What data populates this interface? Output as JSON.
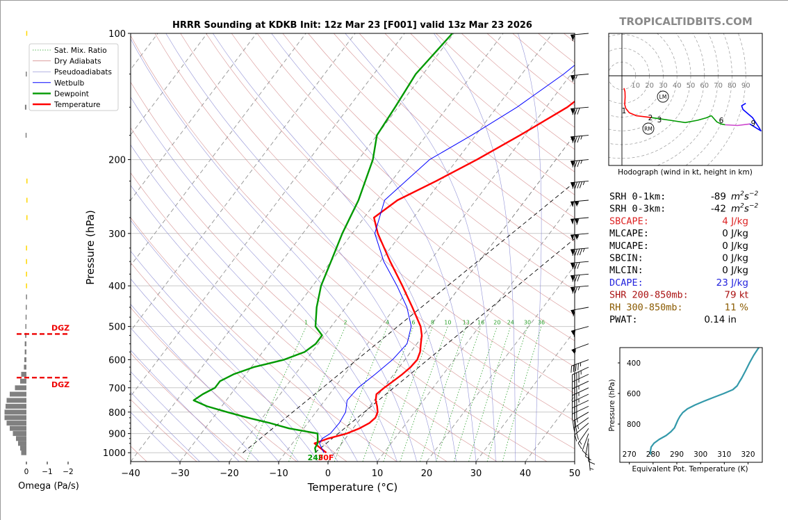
{
  "title": "HRRR Sounding at KDKB Init: 12z Mar 23 [F001] valid 13z Mar 23 2026",
  "brand": "TROPICALTIDBITS.COM",
  "chart_data": [
    {
      "type": "line",
      "name": "skewt",
      "xlabel": "Temperature (°C)",
      "ylabel": "Pressure (hPa)",
      "xlim": [
        -40,
        50
      ],
      "ylim": [
        1050,
        100
      ],
      "log_y": true,
      "x_ticks": [
        -40,
        -30,
        -20,
        -10,
        0,
        10,
        20,
        30,
        40,
        50
      ],
      "y_ticks": [
        100,
        200,
        300,
        400,
        500,
        600,
        700,
        800,
        900,
        1000
      ],
      "legend": [
        "Sat. Mix. Ratio",
        "Dry Adiabats",
        "Pseudoadiabats",
        "Wetbulb",
        "Dewpoint",
        "Temperature"
      ],
      "series": [
        {
          "name": "Temperature",
          "color": "#ff0000",
          "p": [
            1000,
            975,
            950,
            925,
            900,
            875,
            850,
            825,
            800,
            775,
            750,
            725,
            700,
            675,
            650,
            625,
            600,
            575,
            550,
            525,
            500,
            450,
            400,
            350,
            300,
            275,
            250,
            225,
            200,
            175,
            150,
            125,
            100
          ],
          "t": [
            -1.7,
            -3.6,
            -5.5,
            -3.5,
            -0.5,
            1.3,
            2.5,
            2.9,
            2.5,
            1.5,
            0.3,
            -0.5,
            0.1,
            0.9,
            1.7,
            2.3,
            2.5,
            1.9,
            0.8,
            -0.3,
            -1.9,
            -6.5,
            -11.8,
            -18,
            -24.8,
            -28,
            -25.9,
            -21,
            -16,
            -11,
            -5.7,
            -2.1,
            -2
          ]
        },
        {
          "name": "Dewpoint",
          "color": "#009900",
          "p": [
            1000,
            975,
            950,
            925,
            900,
            875,
            850,
            825,
            800,
            775,
            750,
            725,
            700,
            675,
            650,
            625,
            600,
            575,
            550,
            525,
            500,
            450,
            400,
            350,
            300,
            250,
            200,
            175,
            150,
            125,
            100
          ],
          "t": [
            -3.8,
            -4.7,
            -4.9,
            -5.6,
            -6.4,
            -13,
            -17.6,
            -23,
            -28,
            -33,
            -36.6,
            -35.7,
            -34.2,
            -34.2,
            -32.5,
            -29.5,
            -24.5,
            -21.5,
            -20.5,
            -20.5,
            -23.2,
            -25.9,
            -28.3,
            -30,
            -32,
            -33.8,
            -37.1,
            -40,
            -40.6,
            -41.5,
            -40.3
          ]
        },
        {
          "name": "Wetbulb",
          "color": "#0000ff",
          "p": [
            1000,
            950,
            925,
            900,
            850,
            800,
            750,
            700,
            650,
            600,
            550,
            500,
            450,
            400,
            350,
            300,
            250,
            200,
            175,
            150,
            125,
            100
          ],
          "t": [
            -2.2,
            -4.5,
            -4.7,
            -3.8,
            -3.6,
            -4,
            -5.5,
            -5.2,
            -3.8,
            -2.5,
            -2,
            -3.8,
            -7.6,
            -12.9,
            -19.3,
            -25.4,
            -28.5,
            -25.6,
            -20.8,
            -15.9,
            -11.5,
            -7.6
          ]
        }
      ],
      "surface_labels": [
        {
          "text": "24F",
          "color": "#009900"
        },
        {
          "text": "30F",
          "color": "#ff0000"
        }
      ],
      "mixing_ratio_labels": [
        "1",
        "2",
        "4",
        "6",
        "8",
        "10",
        "13",
        "16",
        "20",
        "24",
        "30",
        "36"
      ]
    },
    {
      "type": "line",
      "name": "hodograph",
      "xlabel": "Hodograph (wind in kt, height in km)",
      "ring_labels": [
        "10",
        "20",
        "30",
        "40",
        "50",
        "60",
        "70",
        "80",
        "90"
      ],
      "height_labels": [
        "1",
        "2",
        "3",
        "6",
        "9"
      ],
      "storm_motion": [
        "LM",
        "RM"
      ],
      "series": [
        {
          "name": "0-1 km",
          "color": "#ff0000",
          "u": [
            1.5,
            2.2,
            2.3,
            2.0,
            2.8,
            5.3,
            10.3,
            18.6,
            21.5
          ],
          "v": [
            -9,
            -11.6,
            -15.5,
            -20.8,
            -23.7,
            -26.8,
            -29,
            -30,
            -30.4
          ]
        },
        {
          "name": "1-3 km",
          "color": "#009900",
          "u": [
            21.5,
            26,
            35,
            46,
            55,
            61.5,
            65
          ],
          "v": [
            -30.4,
            -31,
            -32.3,
            -34,
            -32.3,
            -30.5,
            -29
          ]
        },
        {
          "name": "3-6 km",
          "color": "#009900",
          "u": [
            65,
            69,
            72,
            75
          ],
          "v": [
            -29,
            -33.5,
            -35,
            -35.6
          ]
        },
        {
          "name": "6-9 km",
          "color": "#cc44cc",
          "u": [
            75,
            84,
            93
          ],
          "v": [
            -35.6,
            -36.1,
            -35
          ]
        },
        {
          "name": "9-12 km",
          "color": "#0000ff",
          "u": [
            93,
            98,
            101,
            100,
            95,
            88,
            87,
            90
          ],
          "v": [
            -35,
            -38.2,
            -40,
            -38.2,
            -30.5,
            -24.5,
            -21.8,
            -20
          ]
        }
      ]
    },
    {
      "type": "line",
      "name": "theta-e",
      "xlabel": "Equivalent Pot. Temperature (K)",
      "ylabel": "Pressure (hPa)",
      "xlim": [
        266,
        326
      ],
      "ylim": [
        1050,
        300
      ],
      "x_ticks": [
        270,
        280,
        290,
        300,
        310,
        320
      ],
      "y_ticks": [
        400,
        600,
        800
      ],
      "series": [
        {
          "name": "theta-e",
          "color": "#3399aa",
          "p": [
            1000,
            975,
            950,
            925,
            900,
            875,
            850,
            825,
            800,
            775,
            750,
            725,
            700,
            675,
            650,
            625,
            600,
            575,
            550,
            525,
            500,
            450,
            400,
            350,
            300
          ],
          "v": [
            279,
            278.9,
            279.2,
            280.4,
            282.6,
            285.5,
            287.5,
            289,
            289.7,
            290.4,
            291.3,
            292.5,
            294.5,
            297.7,
            301.5,
            305.6,
            309.8,
            313.6,
            315.4,
            316.3,
            317.3,
            319,
            320.6,
            322.4,
            324.5
          ]
        }
      ]
    },
    {
      "type": "bar",
      "name": "omega",
      "xlabel": "Omega (Pa/s)",
      "x_ticks": [
        "0",
        "−1",
        "−2"
      ],
      "dgz_label": "DGZ",
      "dgz_pressures": [
        521,
        662
      ],
      "values": [
        {
          "p": 1000,
          "w": 0.25,
          "c": "#808080"
        },
        {
          "p": 975,
          "w": 0.3,
          "c": "#808080"
        },
        {
          "p": 950,
          "w": 0.4,
          "c": "#808080"
        },
        {
          "p": 925,
          "w": 0.5,
          "c": "#808080"
        },
        {
          "p": 900,
          "w": 0.65,
          "c": "#808080"
        },
        {
          "p": 875,
          "w": 0.8,
          "c": "#808080"
        },
        {
          "p": 850,
          "w": 0.95,
          "c": "#808080"
        },
        {
          "p": 825,
          "w": 1.05,
          "c": "#808080"
        },
        {
          "p": 800,
          "w": 1.05,
          "c": "#808080"
        },
        {
          "p": 775,
          "w": 1.0,
          "c": "#808080"
        },
        {
          "p": 750,
          "w": 0.95,
          "c": "#808080"
        },
        {
          "p": 725,
          "w": 0.8,
          "c": "#808080"
        },
        {
          "p": 700,
          "w": 0.55,
          "c": "#808080"
        },
        {
          "p": 675,
          "w": 0.3,
          "c": "#808080"
        },
        {
          "p": 650,
          "w": 0.25,
          "c": "#808080"
        },
        {
          "p": 625,
          "w": 0.12,
          "c": "#808080"
        },
        {
          "p": 600,
          "w": 0.1,
          "c": "#808080"
        },
        {
          "p": 575,
          "w": 0.08,
          "c": "#808080"
        },
        {
          "p": 550,
          "w": 0.08,
          "c": "#808080"
        },
        {
          "p": 525,
          "w": 0.06,
          "c": "#808080"
        },
        {
          "p": 500,
          "w": 0.05,
          "c": "#808080"
        },
        {
          "p": 475,
          "w": 0.04,
          "c": "#808080"
        },
        {
          "p": 450,
          "w": 0.03,
          "c": "#808080"
        },
        {
          "p": 425,
          "w": 0.02,
          "c": "#808080"
        },
        {
          "p": 400,
          "w": 0.02,
          "c": "#ffd700"
        },
        {
          "p": 375,
          "w": 0.02,
          "c": "#ffd700"
        },
        {
          "p": 350,
          "w": 0.02,
          "c": "#ffd700"
        },
        {
          "p": 325,
          "w": 0.02,
          "c": "#ffd700"
        },
        {
          "p": 275,
          "w": -0.02,
          "c": "#ffd700"
        },
        {
          "p": 250,
          "w": -0.05,
          "c": "#ffd700"
        },
        {
          "p": 225,
          "w": -0.05,
          "c": "#ffd700"
        },
        {
          "p": 175,
          "w": 0.04,
          "c": "#808080"
        },
        {
          "p": 150,
          "w": 0.07,
          "c": "#808080"
        },
        {
          "p": 125,
          "w": 0.03,
          "c": "#808080"
        },
        {
          "p": 100,
          "w": 0.01,
          "c": "#ffd700"
        }
      ]
    }
  ],
  "indices": [
    {
      "label": "SRH 0-1km:",
      "value": "-89",
      "unit": "m2s-2",
      "color": "#000000"
    },
    {
      "label": "SRH 0-3km:",
      "value": "-42",
      "unit": "m2s-2",
      "color": "#000000"
    },
    {
      "label": "SBCAPE:",
      "value": "4 J/kg",
      "unit": "",
      "color": "#dd2222"
    },
    {
      "label": "MLCAPE:",
      "value": "0 J/kg",
      "unit": "",
      "color": "#000000"
    },
    {
      "label": "MUCAPE:",
      "value": "0 J/kg",
      "unit": "",
      "color": "#000000"
    },
    {
      "label": "SBCIN:",
      "value": "0 J/kg",
      "unit": "",
      "color": "#000000"
    },
    {
      "label": "MLCIN:",
      "value": "0 J/kg",
      "unit": "",
      "color": "#000000"
    },
    {
      "label": "DCAPE:",
      "value": "23 J/kg",
      "unit": "",
      "color": "#2222dd"
    },
    {
      "label": "SHR 200-850mb:",
      "value": "79 kt",
      "unit": "",
      "color": "#aa1111"
    },
    {
      "label": "RH 300-850mb:",
      "value": "11 %",
      "unit": "",
      "color": "#8a5a00"
    },
    {
      "label": "PWAT:",
      "value": "0.14 in",
      "unit": "",
      "color": "#000000"
    }
  ],
  "winds": [
    {
      "p": 1000,
      "dir": 175,
      "spd": 5
    },
    {
      "p": 950,
      "dir": 180,
      "spd": 10
    },
    {
      "p": 925,
      "dir": 190,
      "spd": 10
    },
    {
      "p": 900,
      "dir": 200,
      "spd": 10
    },
    {
      "p": 875,
      "dir": 215,
      "spd": 15
    },
    {
      "p": 850,
      "dir": 230,
      "spd": 20
    },
    {
      "p": 825,
      "dir": 235,
      "spd": 25
    },
    {
      "p": 800,
      "dir": 240,
      "spd": 25
    },
    {
      "p": 775,
      "dir": 245,
      "spd": 30
    },
    {
      "p": 750,
      "dir": 245,
      "spd": 30
    },
    {
      "p": 725,
      "dir": 245,
      "spd": 35
    },
    {
      "p": 700,
      "dir": 245,
      "spd": 35
    },
    {
      "p": 675,
      "dir": 245,
      "spd": 35
    },
    {
      "p": 650,
      "dir": 245,
      "spd": 35
    },
    {
      "p": 625,
      "dir": 245,
      "spd": 45
    },
    {
      "p": 600,
      "dir": 250,
      "spd": 45
    },
    {
      "p": 550,
      "dir": 250,
      "spd": 55
    },
    {
      "p": 500,
      "dir": 255,
      "spd": 60
    },
    {
      "p": 450,
      "dir": 260,
      "spd": 60
    },
    {
      "p": 400,
      "dir": 265,
      "spd": 75
    },
    {
      "p": 375,
      "dir": 265,
      "spd": 80
    },
    {
      "p": 350,
      "dir": 265,
      "spd": 80
    },
    {
      "p": 325,
      "dir": 265,
      "spd": 95
    },
    {
      "p": 300,
      "dir": 265,
      "spd": 105
    },
    {
      "p": 275,
      "dir": 265,
      "spd": 110
    },
    {
      "p": 250,
      "dir": 265,
      "spd": 105
    },
    {
      "p": 225,
      "dir": 265,
      "spd": 95
    },
    {
      "p": 200,
      "dir": 265,
      "spd": 85
    },
    {
      "p": 175,
      "dir": 265,
      "spd": 85
    },
    {
      "p": 150,
      "dir": 265,
      "spd": 80
    },
    {
      "p": 125,
      "dir": 265,
      "spd": 65
    },
    {
      "p": 100,
      "dir": 265,
      "spd": 60
    }
  ]
}
